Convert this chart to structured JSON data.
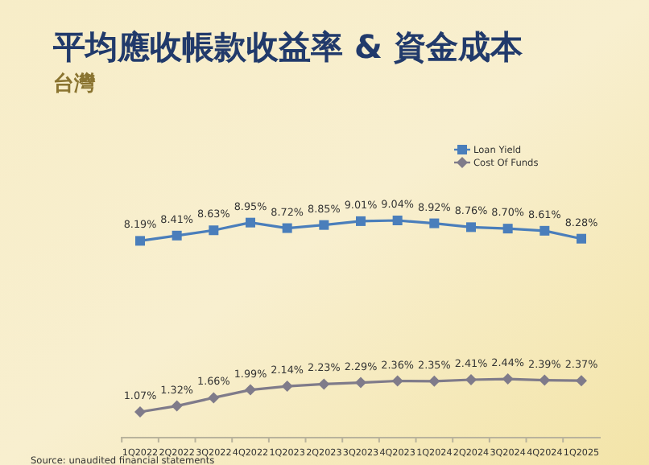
{
  "chart_data": {
    "type": "line",
    "title": "平均應收帳款收益率 & 資金成本",
    "subtitle": "台灣",
    "categories": [
      "1Q2022",
      "2Q2022",
      "3Q2022",
      "4Q2022",
      "1Q2023",
      "2Q2023",
      "3Q2023",
      "4Q2023",
      "1Q2024",
      "2Q2024",
      "3Q2024",
      "4Q2024",
      "1Q2025"
    ],
    "series": [
      {
        "name": "Loan Yield",
        "color": "#4a7ebb",
        "marker": "square",
        "values": [
          8.19,
          8.41,
          8.63,
          8.95,
          8.72,
          8.85,
          9.01,
          9.04,
          8.92,
          8.76,
          8.7,
          8.61,
          8.28
        ],
        "value_labels": [
          "8.19%",
          "8.41%",
          "8.63%",
          "8.95%",
          "8.72%",
          "8.85%",
          "9.01%",
          "9.04%",
          "8.92%",
          "8.76%",
          "8.70%",
          "8.61%",
          "8.28%"
        ]
      },
      {
        "name": "Cost Of Funds",
        "color": "#7f7b8a",
        "marker": "diamond",
        "values": [
          1.07,
          1.32,
          1.66,
          1.99,
          2.14,
          2.23,
          2.29,
          2.36,
          2.35,
          2.41,
          2.44,
          2.39,
          2.37
        ],
        "value_labels": [
          "1.07%",
          "1.32%",
          "1.66%",
          "1.99%",
          "2.14%",
          "2.23%",
          "2.29%",
          "2.36%",
          "2.35%",
          "2.41%",
          "2.44%",
          "2.39%",
          "2.37%"
        ]
      }
    ],
    "legend": "top right",
    "grid": false,
    "tick_labels": "x",
    "annotations": [
      "Source: unaudited financial statements"
    ]
  }
}
